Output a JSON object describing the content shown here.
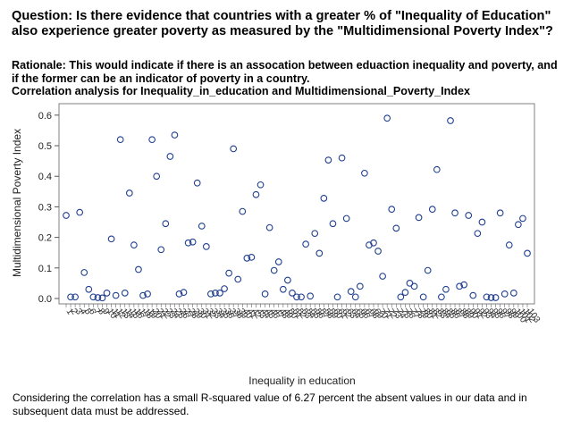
{
  "header": {
    "question": "Question: Is there evidence that countries with a greater % of \"Inequality of Education\" also experience greater poverty as measured by the \"Multidimensional Poverty Index\"?",
    "rationale": "Rationale: This would indicate if there is an assocation between eduaction inequality and poverty, and if the former can be an indicator of poverty in a country.",
    "analysis_title": "Correlation analysis for Inequality_in_education and Multidimensional_Poverty_Index"
  },
  "footer": {
    "note": " Considering the correlation has a small R-squared value of 6.27 percent the absent values in our data and in subsequent data must be addressed."
  },
  "colors": {
    "marker": "#1f3f8f",
    "frame": "#808080"
  },
  "chart_data": {
    "type": "scatter",
    "xlabel": "Inequality in education",
    "ylabel": "Multidimensional Poverty Index",
    "ylim": [
      0,
      0.62
    ],
    "yticks": [
      0.0,
      0.1,
      0.2,
      0.3,
      0.4,
      0.5,
      0.6
    ],
    "grid": false,
    "legend": "none",
    "points": [
      {
        "x": 1,
        "y": 0.272
      },
      {
        "x": 2,
        "y": 0.005
      },
      {
        "x": 3,
        "y": 0.005
      },
      {
        "x": 4,
        "y": 0.282
      },
      {
        "x": 5,
        "y": 0.085
      },
      {
        "x": 6,
        "y": 0.03
      },
      {
        "x": 7,
        "y": 0.005
      },
      {
        "x": 8,
        "y": 0.003
      },
      {
        "x": 9,
        "y": 0.002
      },
      {
        "x": 10,
        "y": 0.018
      },
      {
        "x": 11,
        "y": 0.195
      },
      {
        "x": 12,
        "y": 0.01
      },
      {
        "x": 13,
        "y": 0.52
      },
      {
        "x": 14,
        "y": 0.018
      },
      {
        "x": 15,
        "y": 0.345
      },
      {
        "x": 16,
        "y": 0.175
      },
      {
        "x": 17,
        "y": 0.095
      },
      {
        "x": 18,
        "y": 0.01
      },
      {
        "x": 19,
        "y": 0.015
      },
      {
        "x": 20,
        "y": 0.52
      },
      {
        "x": 21,
        "y": 0.4
      },
      {
        "x": 22,
        "y": 0.16
      },
      {
        "x": 23,
        "y": 0.245
      },
      {
        "x": 24,
        "y": 0.465
      },
      {
        "x": 25,
        "y": 0.535
      },
      {
        "x": 26,
        "y": 0.015
      },
      {
        "x": 27,
        "y": 0.02
      },
      {
        "x": 28,
        "y": 0.182
      },
      {
        "x": 29,
        "y": 0.185
      },
      {
        "x": 30,
        "y": 0.378
      },
      {
        "x": 31,
        "y": 0.237
      },
      {
        "x": 32,
        "y": 0.17
      },
      {
        "x": 33,
        "y": 0.015
      },
      {
        "x": 34,
        "y": 0.018
      },
      {
        "x": 35,
        "y": 0.018
      },
      {
        "x": 36,
        "y": 0.032
      },
      {
        "x": 37,
        "y": 0.083
      },
      {
        "x": 38,
        "y": 0.49
      },
      {
        "x": 39,
        "y": 0.063
      },
      {
        "x": 40,
        "y": 0.285
      },
      {
        "x": 41,
        "y": 0.132
      },
      {
        "x": 42,
        "y": 0.135
      },
      {
        "x": 43,
        "y": 0.34
      },
      {
        "x": 44,
        "y": 0.372
      },
      {
        "x": 45,
        "y": 0.015
      },
      {
        "x": 46,
        "y": 0.232
      },
      {
        "x": 47,
        "y": 0.092
      },
      {
        "x": 48,
        "y": 0.12
      },
      {
        "x": 49,
        "y": 0.03
      },
      {
        "x": 50,
        "y": 0.06
      },
      {
        "x": 51,
        "y": 0.018
      },
      {
        "x": 52,
        "y": 0.005
      },
      {
        "x": 53,
        "y": 0.005
      },
      {
        "x": 54,
        "y": 0.178
      },
      {
        "x": 55,
        "y": 0.008
      },
      {
        "x": 56,
        "y": 0.213
      },
      {
        "x": 57,
        "y": 0.148
      },
      {
        "x": 58,
        "y": 0.328
      },
      {
        "x": 59,
        "y": 0.453
      },
      {
        "x": 60,
        "y": 0.245
      },
      {
        "x": 61,
        "y": 0.005
      },
      {
        "x": 62,
        "y": 0.46
      },
      {
        "x": 63,
        "y": 0.262
      },
      {
        "x": 64,
        "y": 0.023
      },
      {
        "x": 65,
        "y": 0.005
      },
      {
        "x": 66,
        "y": 0.04
      },
      {
        "x": 67,
        "y": 0.41
      },
      {
        "x": 68,
        "y": 0.175
      },
      {
        "x": 69,
        "y": 0.182
      },
      {
        "x": 70,
        "y": 0.155
      },
      {
        "x": 71,
        "y": 0.073
      },
      {
        "x": 72,
        "y": 0.59
      },
      {
        "x": 73,
        "y": 0.292
      },
      {
        "x": 74,
        "y": 0.23
      },
      {
        "x": 75,
        "y": 0.005
      },
      {
        "x": 76,
        "y": 0.02
      },
      {
        "x": 77,
        "y": 0.05
      },
      {
        "x": 78,
        "y": 0.04
      },
      {
        "x": 79,
        "y": 0.265
      },
      {
        "x": 80,
        "y": 0.005
      },
      {
        "x": 81,
        "y": 0.092
      },
      {
        "x": 82,
        "y": 0.292
      },
      {
        "x": 83,
        "y": 0.422
      },
      {
        "x": 84,
        "y": 0.005
      },
      {
        "x": 85,
        "y": 0.03
      },
      {
        "x": 86,
        "y": 0.582
      },
      {
        "x": 87,
        "y": 0.28
      },
      {
        "x": 88,
        "y": 0.04
      },
      {
        "x": 89,
        "y": 0.045
      },
      {
        "x": 90,
        "y": 0.272
      },
      {
        "x": 91,
        "y": 0.01
      },
      {
        "x": 92,
        "y": 0.213
      },
      {
        "x": 93,
        "y": 0.25
      },
      {
        "x": 94,
        "y": 0.005
      },
      {
        "x": 95,
        "y": 0.003
      },
      {
        "x": 96,
        "y": 0.003
      },
      {
        "x": 97,
        "y": 0.28
      },
      {
        "x": 98,
        "y": 0.015
      },
      {
        "x": 99,
        "y": 0.175
      },
      {
        "x": 100,
        "y": 0.018
      },
      {
        "x": 101,
        "y": 0.242
      },
      {
        "x": 102,
        "y": 0.262
      },
      {
        "x": 103,
        "y": 0.148
      }
    ]
  }
}
